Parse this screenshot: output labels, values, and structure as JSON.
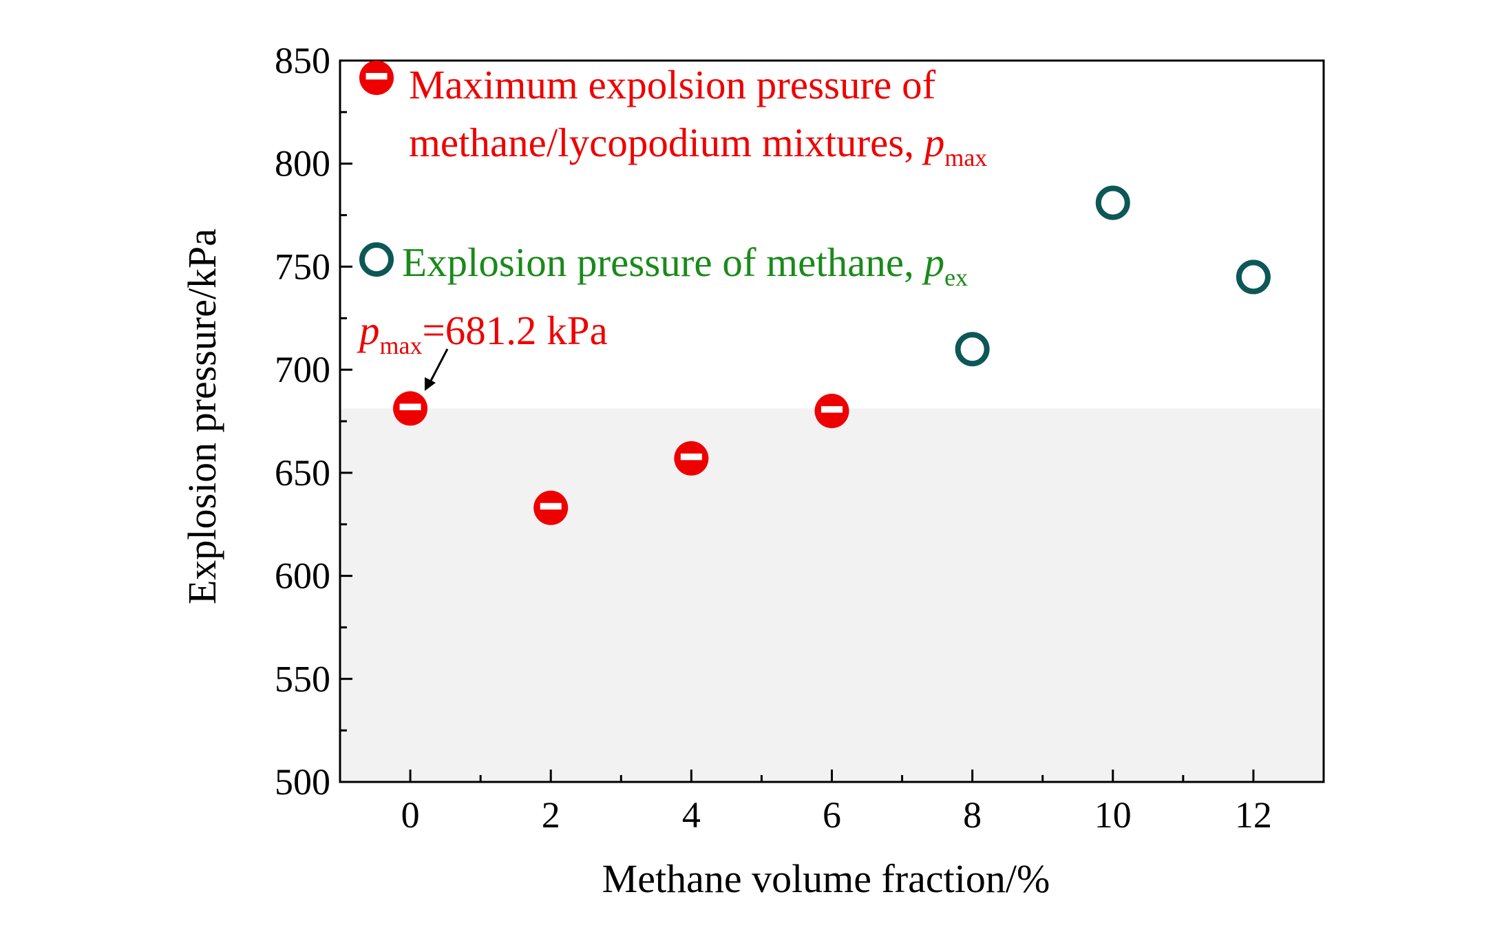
{
  "chart_data": {
    "type": "scatter",
    "xlabel": "Methane volume fraction/%",
    "ylabel": "Explosion pressure/kPa",
    "xlim": [
      -1,
      13
    ],
    "ylim": [
      500,
      850
    ],
    "xticks": [
      0,
      2,
      4,
      6,
      8,
      10,
      12
    ],
    "yticks": [
      500,
      550,
      600,
      650,
      700,
      750,
      800,
      850
    ],
    "grid": false,
    "legend_placement": "top-left",
    "shaded_region": {
      "y_from": 500,
      "y_to": 681.2,
      "color": "#f2f2f2"
    },
    "series": [
      {
        "name_line1": "Maximum expolsion pressure of",
        "name_line2": "methane/lycopodium mixtures, ",
        "name_symbol": "p",
        "name_subscript": "max",
        "marker": "half-filled-circle",
        "color": "#ee0000",
        "x": [
          0,
          2,
          4,
          6
        ],
        "y": [
          681.2,
          633,
          657,
          680
        ]
      },
      {
        "name_line1": "Explosion pressure of methane, ",
        "name_symbol": "p",
        "name_subscript": "ex",
        "marker": "open-circle",
        "color": "#0d5757",
        "text_color": "#1a8a1a",
        "x": [
          8,
          10,
          12
        ],
        "y": [
          710,
          781,
          745
        ]
      }
    ],
    "annotation": {
      "symbol": "p",
      "subscript": "max",
      "text": "=681.2 kPa",
      "color": "#ee0000",
      "x": 0,
      "y": 681.2
    }
  }
}
